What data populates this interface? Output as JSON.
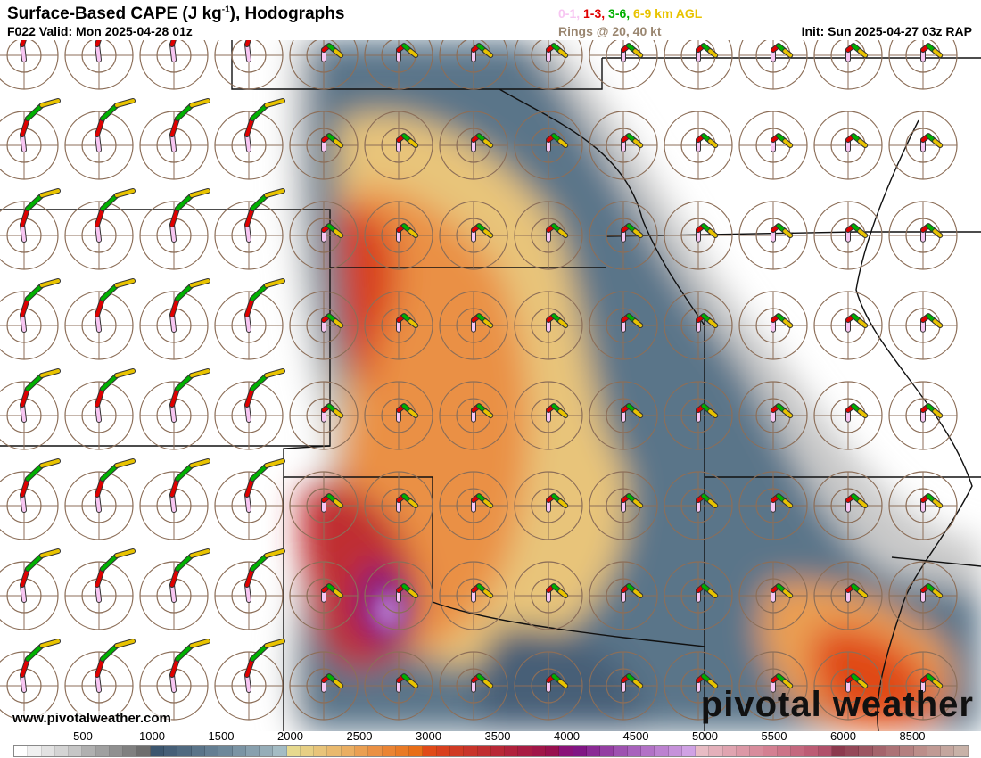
{
  "header": {
    "title_main": "Surface-Based CAPE (J kg",
    "title_sup": "-1",
    "title_end": "), Hodographs",
    "valid": "F022 Valid: Mon 2025-04-28 01z",
    "legend": [
      {
        "label": "0-1,",
        "color": "#f7c6f2"
      },
      {
        "label": "1-3,",
        "color": "#e00000"
      },
      {
        "label": "3-6,",
        "color": "#00b000"
      },
      {
        "label": "6-9 km AGL",
        "color": "#e8c300"
      }
    ],
    "rings": "Rings @ 20, 40 kt",
    "init": "Init: Sun 2025-04-27 03z RAP"
  },
  "footer": {
    "website": "www.pivotalweather.com",
    "brand": "pivotal weather"
  },
  "colorbar": {
    "labels": [
      "500",
      "1000",
      "1500",
      "2000",
      "2500",
      "3000",
      "3500",
      "4000",
      "4500",
      "5000",
      "5500",
      "6000",
      "8500"
    ],
    "colors": [
      "#ffffff",
      "#f0f0f0",
      "#e2e2e2",
      "#d4d4d4",
      "#c6c6c6",
      "#b0b0b0",
      "#a0a0a0",
      "#909090",
      "#808080",
      "#6e6e6e",
      "#3d566e",
      "#465f77",
      "#506a80",
      "#5a7489",
      "#647e92",
      "#6e889a",
      "#7b94a4",
      "#88a0ae",
      "#96adb8",
      "#a4bcc4",
      "#e6d98e",
      "#e7cf84",
      "#e8c47a",
      "#e9b96e",
      "#eaae62",
      "#ea9f52",
      "#ea9044",
      "#ea8434",
      "#e97a26",
      "#e86e18",
      "#e04a18",
      "#d8401e",
      "#d03a24",
      "#c8342a",
      "#c02e30",
      "#b82836",
      "#b0223c",
      "#a81c42",
      "#a01648",
      "#98104e",
      "#8a1278",
      "#801684",
      "#8a2a94",
      "#943ea2",
      "#9e52b0",
      "#a862bc",
      "#b272c6",
      "#bc82d0",
      "#c692da",
      "#d0a2e4",
      "#e8bcc4",
      "#e4b0ba",
      "#e0a4b0",
      "#dc98a6",
      "#d88c9c",
      "#d48092",
      "#cc7488",
      "#c4687e",
      "#bc5c74",
      "#b0506a",
      "#8c3a4e",
      "#944858",
      "#9c5662",
      "#a4646c",
      "#ac7276",
      "#b48080",
      "#bc8e8a",
      "#c09a94",
      "#c4a69e",
      "#c8b2a8"
    ]
  },
  "hodograph_colors": {
    "ring": "#8c6e58",
    "l01": "#f7c6f2",
    "l13": "#e00000",
    "l36": "#00b000",
    "l69": "#e8c300"
  }
}
